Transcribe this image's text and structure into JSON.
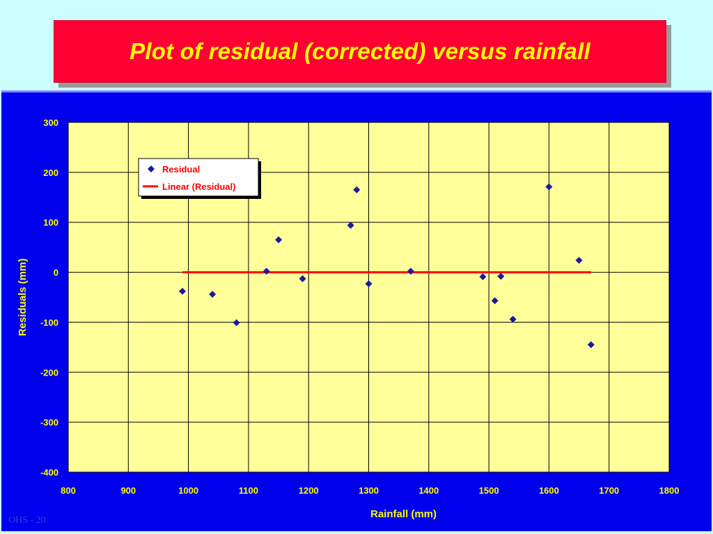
{
  "slide": {
    "title": "Plot of residual (corrected) versus rainfall",
    "footer": "OHS - 20"
  },
  "colors": {
    "page_bg": "#ccffff",
    "title_bg": "#ff0033",
    "title_text": "#ffff00",
    "chart_bg": "#0000ee",
    "plot_bg": "#ffff99",
    "axis_text": "#ffff00",
    "marker": "#1a1aa0",
    "trend": "#ff0000",
    "legend_text": "#ff0000"
  },
  "chart_data": {
    "type": "scatter",
    "title": "",
    "xlabel": "Rainfall (mm)",
    "ylabel": "Residuals (mm)",
    "xlim": [
      800,
      1800
    ],
    "ylim": [
      -400,
      300
    ],
    "xticks": [
      800,
      900,
      1000,
      1100,
      1200,
      1300,
      1400,
      1500,
      1600,
      1700,
      1800
    ],
    "yticks": [
      300,
      200,
      100,
      0,
      -100,
      -200,
      -300,
      -400
    ],
    "grid": true,
    "legend_position": "top-left",
    "series": [
      {
        "name": "Residual",
        "kind": "scatter",
        "marker": "diamond",
        "points": [
          [
            990,
            -38
          ],
          [
            1040,
            -44
          ],
          [
            1080,
            -101
          ],
          [
            1130,
            2
          ],
          [
            1150,
            65
          ],
          [
            1190,
            -13
          ],
          [
            1270,
            94
          ],
          [
            1280,
            165
          ],
          [
            1300,
            -23
          ],
          [
            1370,
            2
          ],
          [
            1490,
            -9
          ],
          [
            1510,
            -57
          ],
          [
            1520,
            -8
          ],
          [
            1540,
            -94
          ],
          [
            1600,
            171
          ],
          [
            1650,
            24
          ],
          [
            1670,
            -145
          ]
        ]
      },
      {
        "name": "Linear (Residual)",
        "kind": "line",
        "points": [
          [
            990,
            0
          ],
          [
            1670,
            0
          ]
        ]
      }
    ]
  }
}
